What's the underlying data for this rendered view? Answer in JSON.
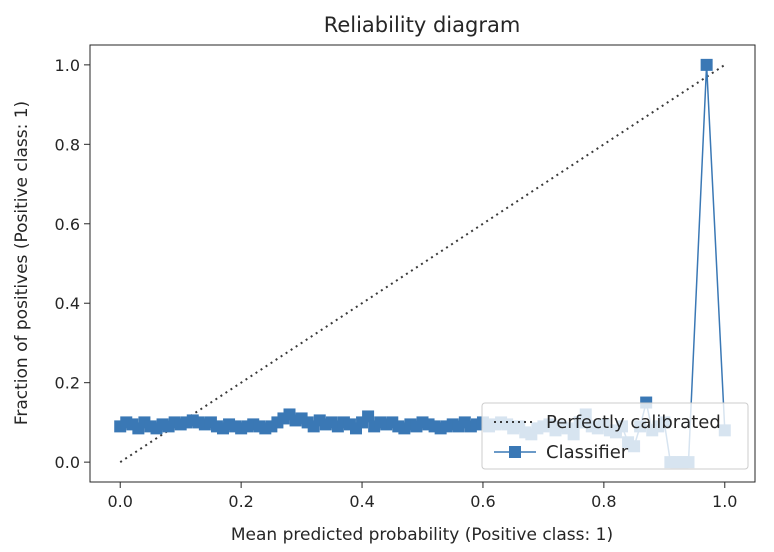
{
  "chart_data": {
    "type": "line",
    "title": "Reliability diagram",
    "xlabel": "Mean predicted probability (Positive class: 1)",
    "ylabel": "Fraction of positives (Positive class: 1)",
    "xlim": [
      -0.05,
      1.05
    ],
    "ylim": [
      -0.05,
      1.05
    ],
    "xticks": [
      "0.0",
      "0.2",
      "0.4",
      "0.6",
      "0.8",
      "1.0"
    ],
    "yticks": [
      "0.0",
      "0.2",
      "0.4",
      "0.6",
      "0.8",
      "1.0"
    ],
    "grid": false,
    "legend_position": "lower-right",
    "colors": {
      "classifier": "#3a78b5",
      "reference": "#3a3a3a"
    },
    "series": [
      {
        "name": "Perfectly calibrated",
        "style": "dotted",
        "x": [
          0,
          1
        ],
        "y": [
          0,
          1
        ]
      },
      {
        "name": "Classifier",
        "style": "solid-square-markers",
        "x": [
          0.0,
          0.01,
          0.02,
          0.03,
          0.04,
          0.05,
          0.06,
          0.07,
          0.08,
          0.09,
          0.1,
          0.11,
          0.12,
          0.13,
          0.14,
          0.15,
          0.16,
          0.17,
          0.18,
          0.19,
          0.2,
          0.21,
          0.22,
          0.23,
          0.24,
          0.25,
          0.26,
          0.27,
          0.28,
          0.29,
          0.3,
          0.31,
          0.32,
          0.33,
          0.34,
          0.35,
          0.36,
          0.37,
          0.38,
          0.39,
          0.4,
          0.41,
          0.42,
          0.43,
          0.44,
          0.45,
          0.46,
          0.47,
          0.48,
          0.49,
          0.5,
          0.51,
          0.52,
          0.53,
          0.54,
          0.55,
          0.56,
          0.57,
          0.58,
          0.59,
          0.6,
          0.61,
          0.62,
          0.63,
          0.64,
          0.65,
          0.66,
          0.67,
          0.68,
          0.69,
          0.7,
          0.71,
          0.72,
          0.73,
          0.74,
          0.75,
          0.76,
          0.77,
          0.78,
          0.79,
          0.8,
          0.81,
          0.82,
          0.83,
          0.84,
          0.85,
          0.86,
          0.87,
          0.88,
          0.89,
          0.9,
          0.91,
          0.92,
          0.93,
          0.94,
          0.97,
          1.0
        ],
        "y": [
          0.09,
          0.1,
          0.095,
          0.085,
          0.1,
          0.09,
          0.085,
          0.095,
          0.09,
          0.1,
          0.095,
          0.1,
          0.105,
          0.1,
          0.095,
          0.1,
          0.09,
          0.085,
          0.095,
          0.09,
          0.085,
          0.09,
          0.095,
          0.09,
          0.085,
          0.09,
          0.1,
          0.11,
          0.12,
          0.105,
          0.11,
          0.1,
          0.09,
          0.105,
          0.095,
          0.1,
          0.09,
          0.1,
          0.095,
          0.085,
          0.1,
          0.115,
          0.09,
          0.1,
          0.095,
          0.1,
          0.09,
          0.085,
          0.095,
          0.09,
          0.1,
          0.095,
          0.09,
          0.085,
          0.09,
          0.095,
          0.09,
          0.1,
          0.09,
          0.095,
          0.1,
          0.09,
          0.095,
          0.1,
          0.095,
          0.085,
          0.09,
          0.075,
          0.07,
          0.085,
          0.09,
          0.095,
          0.08,
          0.09,
          0.085,
          0.07,
          0.1,
          0.12,
          0.09,
          0.085,
          0.095,
          0.08,
          0.075,
          0.09,
          0.05,
          0.04,
          0.09,
          0.15,
          0.08,
          0.09,
          0.1,
          0.0,
          0.0,
          0.0,
          0.0,
          1.0,
          0.08
        ]
      }
    ]
  }
}
